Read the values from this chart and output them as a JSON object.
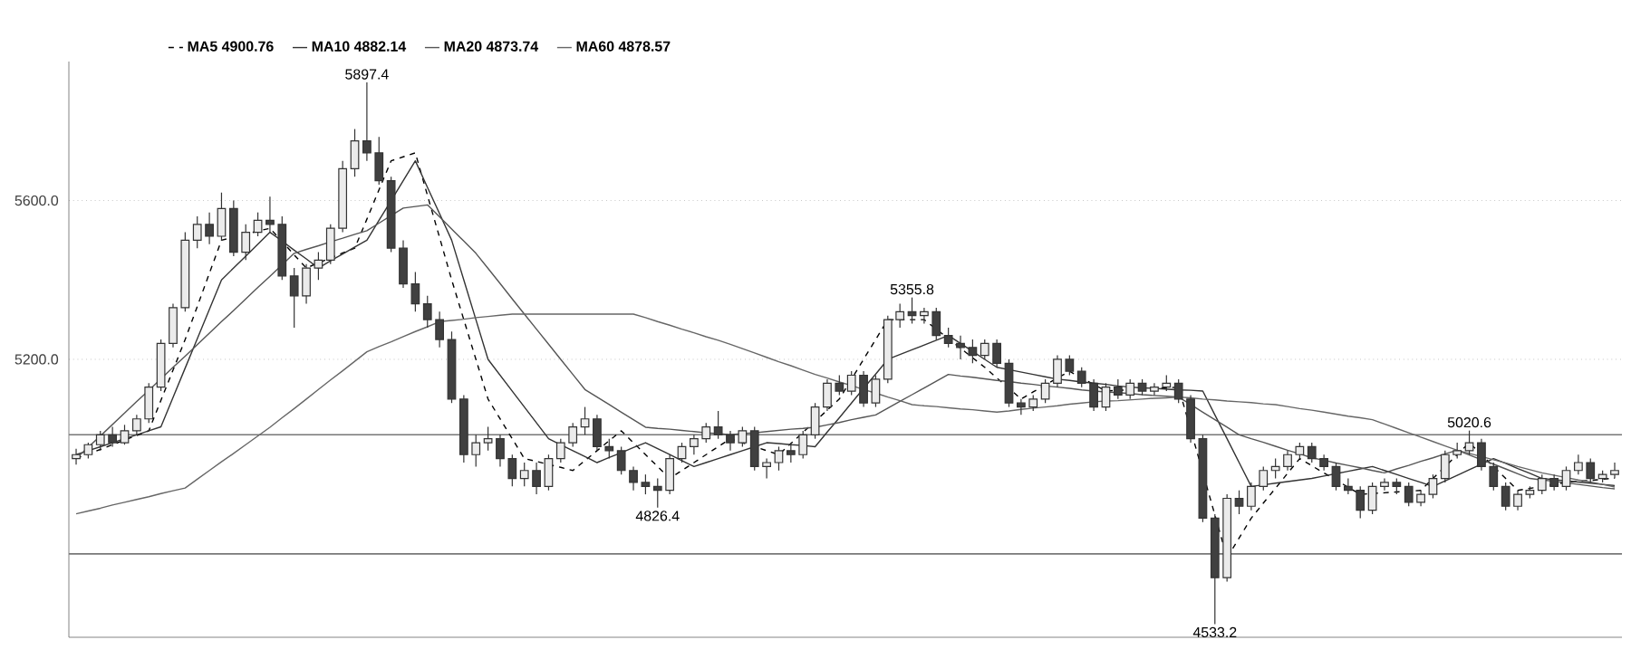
{
  "chart_data": {
    "type": "candlestick",
    "tick_labels": "y",
    "grid": "y",
    "legend": "top",
    "ylim": [
      4500,
      5950
    ],
    "yticks": [
      {
        "value": 5200,
        "label": "5200.0"
      },
      {
        "value": 5600,
        "label": "5600.0"
      }
    ],
    "categories": [
      null,
      null,
      null,
      null,
      null,
      null,
      null,
      null,
      null,
      null,
      null,
      null,
      null,
      null,
      null,
      null,
      null,
      null,
      null,
      null,
      null,
      null,
      null,
      null,
      null,
      null,
      null,
      null,
      null,
      null,
      null,
      null,
      null,
      null,
      null,
      null,
      null,
      null,
      null,
      null,
      null,
      null,
      null,
      null,
      null,
      null,
      null,
      null,
      null,
      null,
      null,
      null,
      null,
      null,
      null,
      null,
      null,
      null,
      null,
      null,
      null,
      null,
      null,
      null,
      null,
      null,
      null,
      null,
      null,
      null,
      null,
      null,
      null,
      null,
      null,
      null,
      null,
      null,
      null,
      null,
      null,
      null,
      null,
      null,
      null,
      null,
      null,
      null,
      null,
      null,
      null,
      null,
      null,
      null,
      null,
      null,
      null,
      null,
      null,
      null,
      null,
      null,
      null,
      null,
      null,
      null,
      null,
      null,
      null,
      null,
      null,
      null,
      null,
      null,
      null,
      null,
      null,
      null,
      null,
      null,
      null,
      null,
      null,
      null,
      null,
      null,
      null,
      null
    ],
    "ohlc": [
      [
        4950,
        4975,
        4935,
        4960
      ],
      [
        4960,
        4990,
        4950,
        4985
      ],
      [
        4985,
        5020,
        4970,
        5010
      ],
      [
        5010,
        5030,
        4980,
        4990
      ],
      [
        4990,
        5035,
        4985,
        5020
      ],
      [
        5020,
        5060,
        5010,
        5050
      ],
      [
        5050,
        5140,
        5040,
        5130
      ],
      [
        5130,
        5250,
        5120,
        5240
      ],
      [
        5240,
        5340,
        5230,
        5330
      ],
      [
        5330,
        5520,
        5320,
        5500
      ],
      [
        5500,
        5560,
        5480,
        5540
      ],
      [
        5540,
        5570,
        5490,
        5510
      ],
      [
        5510,
        5620,
        5500,
        5580
      ],
      [
        5580,
        5600,
        5460,
        5470
      ],
      [
        5470,
        5540,
        5450,
        5520
      ],
      [
        5520,
        5570,
        5510,
        5550
      ],
      [
        5550,
        5610,
        5520,
        5540
      ],
      [
        5540,
        5560,
        5400,
        5410
      ],
      [
        5410,
        5430,
        5280,
        5360
      ],
      [
        5360,
        5440,
        5340,
        5430
      ],
      [
        5430,
        5470,
        5400,
        5450
      ],
      [
        5450,
        5540,
        5440,
        5530
      ],
      [
        5530,
        5700,
        5520,
        5680
      ],
      [
        5680,
        5780,
        5660,
        5750
      ],
      [
        5750,
        5897.4,
        5700,
        5720
      ],
      [
        5720,
        5760,
        5640,
        5650
      ],
      [
        5650,
        5660,
        5470,
        5480
      ],
      [
        5480,
        5500,
        5380,
        5390
      ],
      [
        5390,
        5420,
        5320,
        5340
      ],
      [
        5340,
        5360,
        5280,
        5300
      ],
      [
        5300,
        5320,
        5230,
        5250
      ],
      [
        5250,
        5270,
        5090,
        5100
      ],
      [
        5100,
        5110,
        4940,
        4960
      ],
      [
        4960,
        5010,
        4930,
        4990
      ],
      [
        4990,
        5030,
        4970,
        5000
      ],
      [
        5000,
        5010,
        4930,
        4950
      ],
      [
        4950,
        4960,
        4880,
        4900
      ],
      [
        4900,
        4940,
        4880,
        4920
      ],
      [
        4920,
        4940,
        4860,
        4880
      ],
      [
        4880,
        4960,
        4870,
        4950
      ],
      [
        4950,
        5000,
        4940,
        4990
      ],
      [
        4990,
        5040,
        4980,
        5030
      ],
      [
        5030,
        5080,
        5010,
        5050
      ],
      [
        5050,
        5060,
        4970,
        4980
      ],
      [
        4980,
        5000,
        4950,
        4970
      ],
      [
        4970,
        4980,
        4910,
        4920
      ],
      [
        4920,
        4930,
        4870,
        4890
      ],
      [
        4890,
        4910,
        4860,
        4880
      ],
      [
        4880,
        4900,
        4826.4,
        4870
      ],
      [
        4870,
        4960,
        4860,
        4950
      ],
      [
        4950,
        4990,
        4940,
        4980
      ],
      [
        4980,
        5010,
        4960,
        5000
      ],
      [
        5000,
        5040,
        4990,
        5030
      ],
      [
        5030,
        5070,
        5000,
        5010
      ],
      [
        5010,
        5020,
        4970,
        4990
      ],
      [
        4990,
        5030,
        4980,
        5020
      ],
      [
        5020,
        5030,
        4920,
        4930
      ],
      [
        4930,
        4950,
        4900,
        4940
      ],
      [
        4940,
        4980,
        4920,
        4970
      ],
      [
        4970,
        4990,
        4940,
        4960
      ],
      [
        4960,
        5020,
        4950,
        5010
      ],
      [
        5010,
        5090,
        5000,
        5080
      ],
      [
        5080,
        5150,
        5070,
        5140
      ],
      [
        5140,
        5160,
        5110,
        5120
      ],
      [
        5120,
        5170,
        5110,
        5160
      ],
      [
        5160,
        5170,
        5080,
        5090
      ],
      [
        5090,
        5160,
        5080,
        5150
      ],
      [
        5150,
        5310,
        5140,
        5300
      ],
      [
        5300,
        5340,
        5280,
        5320
      ],
      [
        5320,
        5355.8,
        5290,
        5310
      ],
      [
        5310,
        5330,
        5290,
        5320
      ],
      [
        5320,
        5330,
        5250,
        5260
      ],
      [
        5260,
        5280,
        5230,
        5240
      ],
      [
        5240,
        5260,
        5200,
        5230
      ],
      [
        5230,
        5250,
        5190,
        5210
      ],
      [
        5210,
        5250,
        5200,
        5240
      ],
      [
        5240,
        5250,
        5180,
        5190
      ],
      [
        5190,
        5200,
        5080,
        5090
      ],
      [
        5090,
        5100,
        5060,
        5080
      ],
      [
        5080,
        5110,
        5070,
        5100
      ],
      [
        5100,
        5150,
        5090,
        5140
      ],
      [
        5140,
        5210,
        5130,
        5200
      ],
      [
        5200,
        5210,
        5160,
        5170
      ],
      [
        5170,
        5180,
        5130,
        5140
      ],
      [
        5140,
        5150,
        5070,
        5080
      ],
      [
        5080,
        5140,
        5070,
        5130
      ],
      [
        5130,
        5150,
        5100,
        5110
      ],
      [
        5110,
        5150,
        5100,
        5140
      ],
      [
        5140,
        5150,
        5110,
        5120
      ],
      [
        5120,
        5140,
        5110,
        5130
      ],
      [
        5130,
        5160,
        5120,
        5140
      ],
      [
        5140,
        5150,
        5090,
        5100
      ],
      [
        5100,
        5110,
        4990,
        5000
      ],
      [
        5000,
        5010,
        4790,
        4800
      ],
      [
        4800,
        4810,
        4533.2,
        4650
      ],
      [
        4650,
        4860,
        4640,
        4850
      ],
      [
        4850,
        4870,
        4810,
        4830
      ],
      [
        4830,
        4890,
        4820,
        4880
      ],
      [
        4880,
        4930,
        4870,
        4920
      ],
      [
        4920,
        4950,
        4900,
        4930
      ],
      [
        4930,
        4970,
        4920,
        4960
      ],
      [
        4960,
        4990,
        4950,
        4980
      ],
      [
        4980,
        4990,
        4940,
        4950
      ],
      [
        4950,
        4960,
        4920,
        4930
      ],
      [
        4930,
        4940,
        4870,
        4880
      ],
      [
        4880,
        4900,
        4860,
        4870
      ],
      [
        4870,
        4880,
        4800,
        4820
      ],
      [
        4820,
        4890,
        4810,
        4880
      ],
      [
        4880,
        4900,
        4870,
        4890
      ],
      [
        4890,
        4900,
        4860,
        4880
      ],
      [
        4880,
        4890,
        4830,
        4840
      ],
      [
        4840,
        4870,
        4830,
        4860
      ],
      [
        4860,
        4910,
        4850,
        4900
      ],
      [
        4900,
        4970,
        4890,
        4960
      ],
      [
        4960,
        4990,
        4950,
        4970
      ],
      [
        4970,
        5020.6,
        4960,
        4990
      ],
      [
        4990,
        5000,
        4920,
        4930
      ],
      [
        4930,
        4940,
        4870,
        4880
      ],
      [
        4880,
        4890,
        4820,
        4830
      ],
      [
        4830,
        4870,
        4820,
        4860
      ],
      [
        4860,
        4880,
        4850,
        4870
      ],
      [
        4870,
        4910,
        4860,
        4900
      ],
      [
        4900,
        4910,
        4870,
        4880
      ],
      [
        4880,
        4930,
        4870,
        4920
      ],
      [
        4920,
        4960,
        4910,
        4940
      ],
      [
        4940,
        4950,
        4890,
        4900
      ],
      [
        4900,
        4920,
        4890,
        4910
      ],
      [
        4910,
        4940,
        4900,
        4920
      ]
    ],
    "series": [
      {
        "name": "MA5 4900.76",
        "color": "#000000",
        "type": "line",
        "line_style": "dashed",
        "values": [
          4950,
          4962,
          4973,
          4985,
          4997,
          5008,
          5020,
          5097,
          5173,
          5250,
          5333,
          5417,
          5500,
          5508,
          5515,
          5523,
          5530,
          5497,
          5463,
          5430,
          5443,
          5455,
          5468,
          5480,
          5553,
          5627,
          5700,
          5710,
          5720,
          5613,
          5507,
          5400,
          5300,
          5200,
          5100,
          5050,
          5000,
          4950,
          4943,
          4935,
          4928,
          4920,
          4945,
          4970,
          4995,
          5020,
          4990,
          4960,
          4930,
          4900,
          4920,
          4940,
          4960,
          4980,
          5000,
          4990,
          4980,
          4970,
          4960,
          4988,
          5016,
          5044,
          5072,
          5100,
          5150,
          5200,
          5250,
          5300,
          5300,
          5300,
          5300,
          5276,
          5252,
          5228,
          5204,
          5180,
          5153,
          5127,
          5100,
          5118,
          5135,
          5153,
          5170,
          5153,
          5137,
          5120,
          5122,
          5123,
          5125,
          5127,
          5128,
          5130,
          5023,
          4915,
          4808,
          4700,
          4750,
          4800,
          4838,
          4875,
          4913,
          4950,
          4932,
          4914,
          4896,
          4878,
          4860,
          4862,
          4864,
          4866,
          4868,
          4870,
          4900,
          4930,
          4960,
          4990,
          4960,
          4930,
          4900,
          4870,
          4875,
          4880,
          4885,
          4890,
          4893,
          4895,
          4898,
          4900.76
        ]
      },
      {
        "name": "MA10 4882.14",
        "color": "#333333",
        "type": "line",
        "line_style": "solid",
        "values": [
          4960,
          4970,
          4980,
          4990,
          5000,
          5010,
          5020,
          5030,
          5104,
          5178,
          5252,
          5326,
          5400,
          5430,
          5460,
          5490,
          5520,
          5498,
          5475,
          5453,
          5430,
          5448,
          5465,
          5483,
          5500,
          5550,
          5600,
          5650,
          5700,
          5633,
          5567,
          5500,
          5400,
          5300,
          5200,
          5160,
          5120,
          5080,
          5040,
          5000,
          4985,
          4970,
          4955,
          4940,
          4953,
          4965,
          4978,
          4990,
          4975,
          4960,
          4945,
          4930,
          4940,
          4950,
          4960,
          4970,
          4980,
          4990,
          4988,
          4985,
          4983,
          4980,
          5017,
          5053,
          5090,
          5127,
          5163,
          5200,
          5212,
          5224,
          5236,
          5248,
          5260,
          5240,
          5220,
          5200,
          5180,
          5174,
          5168,
          5162,
          5156,
          5150,
          5147,
          5143,
          5140,
          5137,
          5133,
          5130,
          5128,
          5127,
          5125,
          5123,
          5122,
          5120,
          5060,
          5000,
          4940,
          4880,
          4884,
          4888,
          4892,
          4896,
          4900,
          4906,
          4912,
          4918,
          4924,
          4930,
          4920,
          4910,
          4900,
          4890,
          4880,
          4894,
          4908,
          4922,
          4936,
          4950,
          4938,
          4925,
          4913,
          4900,
          4897,
          4894,
          4891,
          4888,
          4885,
          4882.14
        ]
      },
      {
        "name": "MA20 4873.74",
        "color": "#555555",
        "type": "line",
        "line_style": "solid",
        "values": [
          4950,
          4979,
          5007,
          5036,
          5065,
          5094,
          5122,
          5151,
          5180,
          5208,
          5237,
          5266,
          5295,
          5323,
          5352,
          5381,
          5409,
          5438,
          5467,
          5477,
          5486,
          5496,
          5505,
          5515,
          5524,
          5543,
          5562,
          5581,
          5585,
          5589,
          5559,
          5528,
          5498,
          5467,
          5429,
          5391,
          5352,
          5314,
          5276,
          5238,
          5200,
          5162,
          5124,
          5105,
          5086,
          5067,
          5048,
          5029,
          5026,
          5024,
          5021,
          5018,
          5015,
          5013,
          5010,
          5013,
          5015,
          5018,
          5021,
          5024,
          5026,
          5029,
          5035,
          5041,
          5048,
          5054,
          5060,
          5077,
          5094,
          5111,
          5128,
          5145,
          5162,
          5158,
          5155,
          5151,
          5147,
          5144,
          5140,
          5137,
          5133,
          5130,
          5127,
          5123,
          5120,
          5118,
          5116,
          5114,
          5111,
          5109,
          5107,
          5105,
          5086,
          5067,
          5048,
          5029,
          5010,
          5000,
          4991,
          4981,
          4971,
          4962,
          4952,
          4946,
          4939,
          4933,
          4927,
          4920,
          4914,
          4924,
          4933,
          4943,
          4952,
          4962,
          4971,
          4959,
          4947,
          4936,
          4924,
          4912,
          4900,
          4896,
          4893,
          4889,
          4885,
          4881,
          4877,
          4873.74
        ]
      },
      {
        "name": "MA60 4878.57",
        "color": "#666666",
        "type": "line",
        "line_style": "solid",
        "values": [
          4811,
          4818,
          4825,
          4833,
          4840,
          4847,
          4854,
          4862,
          4869,
          4876,
          4898,
          4920,
          4942,
          4963,
          4985,
          5007,
          5029,
          5053,
          5076,
          5100,
          5124,
          5148,
          5171,
          5195,
          5219,
          5232,
          5244,
          5257,
          5270,
          5282,
          5295,
          5298,
          5301,
          5305,
          5308,
          5311,
          5314,
          5314,
          5314,
          5314,
          5314,
          5314,
          5314,
          5314,
          5314,
          5314,
          5314,
          5305,
          5295,
          5286,
          5276,
          5267,
          5257,
          5248,
          5238,
          5227,
          5216,
          5205,
          5194,
          5184,
          5173,
          5162,
          5153,
          5143,
          5134,
          5124,
          5115,
          5105,
          5096,
          5086,
          5083,
          5081,
          5078,
          5075,
          5073,
          5070,
          5067,
          5070,
          5074,
          5077,
          5080,
          5083,
          5087,
          5090,
          5093,
          5095,
          5096,
          5098,
          5100,
          5102,
          5103,
          5105,
          5103,
          5100,
          5098,
          5095,
          5093,
          5091,
          5088,
          5086,
          5081,
          5076,
          5072,
          5067,
          5062,
          5057,
          5053,
          5048,
          5037,
          5026,
          5015,
          5004,
          4993,
          4982,
          4971,
          4963,
          4955,
          4947,
          4939,
          4930,
          4922,
          4914,
          4908,
          4902,
          4896,
          4891,
          4885,
          4878.57
        ]
      }
    ],
    "ref_lines": [
      {
        "axis": "y",
        "value": 5010,
        "color": "#777777"
      },
      {
        "axis": "y",
        "value": 4710,
        "color": "#777777"
      }
    ],
    "annotations": [
      {
        "text": "5897.4",
        "y": 5897.4
      },
      {
        "text": "5355.8",
        "y": 5355.8
      },
      {
        "text": "4826.4",
        "y": 4826.4
      },
      {
        "text": "4533.2",
        "y": 4533.2
      },
      {
        "text": "5020.6",
        "y": 5020.6
      }
    ]
  }
}
